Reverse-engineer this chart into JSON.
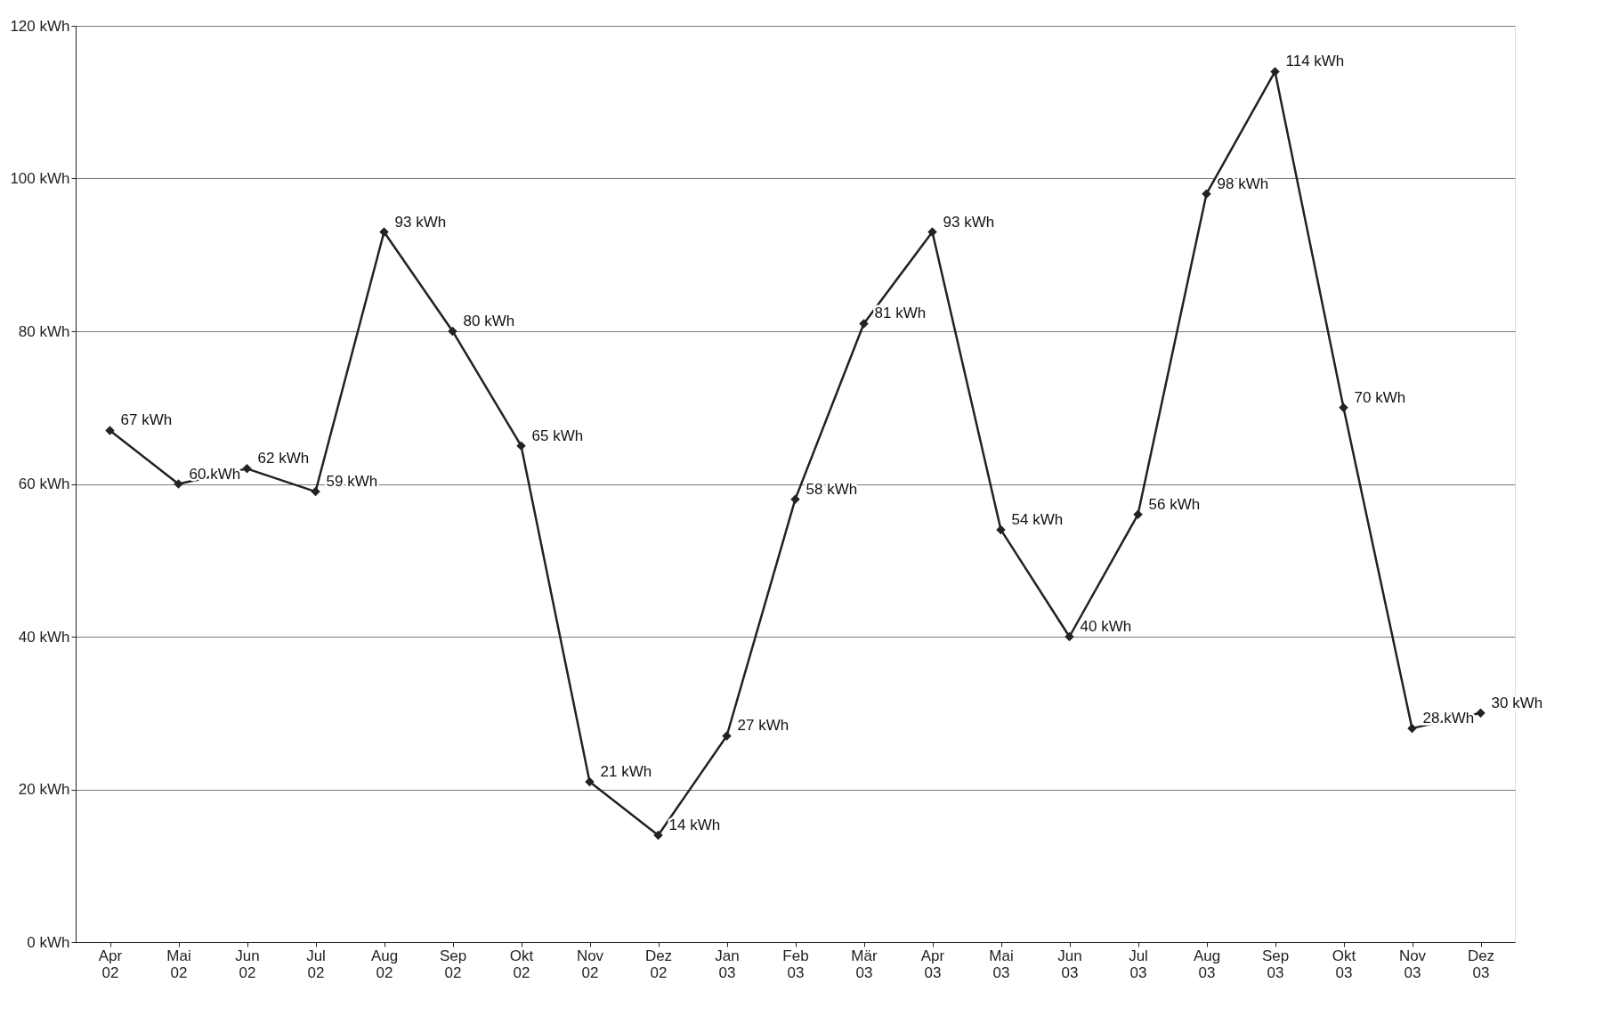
{
  "chart_data": {
    "type": "line",
    "categories": [
      "Apr 02",
      "Mai 02",
      "Jun 02",
      "Jul 02",
      "Aug 02",
      "Sep 02",
      "Okt 02",
      "Nov 02",
      "Dez 02",
      "Jan 03",
      "Feb 03",
      "Mär 03",
      "Apr 03",
      "Mai 03",
      "Jun 03",
      "Jul 03",
      "Aug 03",
      "Sep 03",
      "Okt 03",
      "Nov 03",
      "Dez 03"
    ],
    "series": [
      {
        "color": "#222222",
        "values": [
          67,
          60,
          62,
          59,
          93,
          80,
          65,
          21,
          14,
          27,
          58,
          81,
          93,
          54,
          40,
          56,
          98,
          114,
          70,
          28,
          30
        ],
        "value_labels": [
          "67 kWh",
          "60 kWh",
          "62 kWh",
          "59 kWh",
          "93 kWh",
          "80 kWh",
          "65 kWh",
          "21 kWh",
          "14 kWh",
          "27 kWh",
          "58 kWh",
          "81 kWh",
          "93 kWh",
          "54 kWh",
          "40 kWh",
          "56 kWh",
          "98 kWh",
          "114 kWh",
          "70 kWh",
          "28 kWh",
          "30 kWh"
        ]
      }
    ],
    "ylim": [
      0,
      120
    ],
    "yticks": [
      {
        "value": 0,
        "label": "0 kWh"
      },
      {
        "value": 20,
        "label": "20 kWh"
      },
      {
        "value": 40,
        "label": "40 kWh"
      },
      {
        "value": 60,
        "label": "60 kWh"
      },
      {
        "value": 80,
        "label": "80 kWh"
      },
      {
        "value": 100,
        "label": "100 kWh"
      },
      {
        "value": 120,
        "label": "120 kWh"
      }
    ],
    "grid": "y",
    "marker": "diamond",
    "line_style": "solid"
  }
}
